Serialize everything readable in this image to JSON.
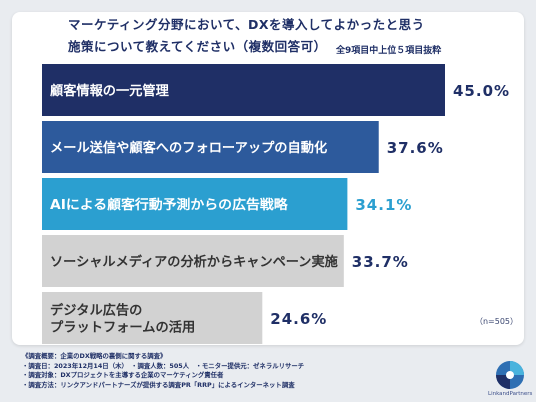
{
  "title_line1": "マーケティング分野において、DXを導入してよかったと思う",
  "title_line2": "施策について教えてください（複数回答可）",
  "subtitle": "全9項目中上位５項目抜粋",
  "n_note": "（n=505）",
  "footer": {
    "line1": "《調査概要：企業のDX戦略の裏側に関する調査》",
    "line2": "・調査日：2023年12月14日（木）　・調査人数：505人　・モニター提供元：ゼネラルリサーチ",
    "line3": "・調査対象：DXプロジェクトを主導する企業のマーケティング責任者",
    "line4": "・調査方法：リンクアンドパートナーズが提供する調査PR「RRP」によるインターネット調査"
  },
  "logo": {
    "name": "circular-swirl-logo",
    "text": "LinkandPartners"
  },
  "colors": {
    "page_bg": "#e9ecf0",
    "title": "#1f2f66",
    "bar_1": "#1f2f66",
    "bar_2": "#2d5a9c",
    "bar_3": "#2b9fd0",
    "bar_4": "#d2d2d2",
    "bar_5": "#d2d2d2",
    "value_text": "#1f2f66",
    "value_highlight": "#2b9fd0"
  },
  "chart_data": {
    "type": "bar",
    "orientation": "horizontal",
    "title": "マーケティング分野において、DXを導入してよかったと思う施策について教えてください（複数回答可）",
    "subtitle": "全9項目中上位５項目抜粋",
    "unit": "%",
    "xlim": [
      0,
      50
    ],
    "grid": false,
    "legend": "none",
    "categories": [
      "顧客情報の一元管理",
      "メール送信や顧客へのフォローアップの自動化",
      "AIによる顧客行動予測からの広告戦略",
      "ソーシャルメディアの分析からキャンペーン実施",
      "デジタル広告のプラットフォームの活用"
    ],
    "category_display": [
      [
        "顧客情報の一元管理"
      ],
      [
        "メール送信や顧客へのフォローアップの自動化"
      ],
      [
        "AIによる顧客行動予測からの広告戦略"
      ],
      [
        "ソーシャルメディアの分析からキャンペーン実施"
      ],
      [
        "デジタル広告の",
        "プラットフォームの活用"
      ]
    ],
    "values": [
      45.0,
      37.6,
      34.1,
      33.7,
      24.6
    ],
    "value_labels": [
      "45.0%",
      "37.6%",
      "34.1%",
      "33.7%",
      "24.6%"
    ]
  }
}
